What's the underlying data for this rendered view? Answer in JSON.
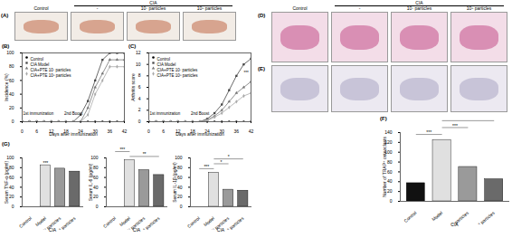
{
  "photo_panels": [
    {
      "title": "(A)",
      "group": "CIA",
      "labels": [
        "Control",
        "-",
        "10⁷ particles",
        "10⁸ particles"
      ]
    },
    {
      "title": "(D)",
      "group": "CIA",
      "labels": [
        "Control",
        "-",
        "10⁷ particles",
        "10⁸ particles"
      ]
    },
    {
      "title": "(E)"
    }
  ],
  "chart_data": [
    {
      "type": "line",
      "title": "(B)",
      "xlabel": "Days after immunization",
      "ylabel": "Incidence (%)",
      "x": [
        0,
        3,
        6,
        9,
        12,
        15,
        18,
        21,
        24,
        27,
        30,
        33,
        36,
        39,
        42
      ],
      "xlim": [
        0,
        42
      ],
      "xticks": [
        0,
        6,
        12,
        18,
        24,
        30,
        36,
        42
      ],
      "ylim": [
        0,
        100
      ],
      "yticks": [
        0,
        20,
        40,
        60,
        80,
        100
      ],
      "legend": "top-left",
      "annotations": [
        {
          "text": "1st immunization",
          "x": 0,
          "y": 12
        },
        {
          "text": "2nd Boost",
          "x": 21,
          "y": 12
        }
      ],
      "series": [
        {
          "name": "Control",
          "color": "#000000",
          "marker": "circle",
          "values": [
            0,
            0,
            0,
            0,
            0,
            0,
            0,
            0,
            0,
            0,
            0,
            0,
            0,
            0,
            0
          ]
        },
        {
          "name": "CIA Model",
          "color": "#444444",
          "marker": "square",
          "values": [
            0,
            0,
            0,
            0,
            0,
            0,
            0,
            0,
            10,
            30,
            60,
            90,
            100,
            100,
            100
          ]
        },
        {
          "name": "CIA+PTE 10⁷ particles",
          "color": "#777777",
          "marker": "triangle",
          "values": [
            0,
            0,
            0,
            0,
            0,
            0,
            0,
            0,
            0,
            20,
            50,
            70,
            90,
            90,
            90
          ]
        },
        {
          "name": "CIA+PTE 10⁸ particles",
          "color": "#aaaaaa",
          "marker": "diamond",
          "values": [
            0,
            0,
            0,
            0,
            0,
            0,
            0,
            0,
            0,
            10,
            40,
            60,
            80,
            80,
            80
          ]
        }
      ]
    },
    {
      "type": "line",
      "title": "(C)",
      "xlabel": "Days after immunization",
      "ylabel": "Arthritis score",
      "x": [
        0,
        3,
        6,
        9,
        12,
        15,
        18,
        21,
        24,
        27,
        30,
        33,
        36,
        39,
        42
      ],
      "xlim": [
        0,
        42
      ],
      "xticks": [
        0,
        6,
        12,
        18,
        24,
        30,
        36,
        42
      ],
      "ylim": [
        0,
        12
      ],
      "yticks": [
        0,
        2,
        4,
        6,
        8,
        10,
        12
      ],
      "legend": "top-left",
      "annotations": [
        {
          "text": "1st immunization",
          "x": 0,
          "y": 1.4
        },
        {
          "text": "2nd Boost",
          "x": 21,
          "y": 1.4
        },
        {
          "text": "***",
          "x": 40,
          "y": 8.5
        }
      ],
      "series": [
        {
          "name": "Control",
          "color": "#000000",
          "marker": "circle",
          "values": [
            0,
            0,
            0,
            0,
            0,
            0,
            0,
            0,
            0,
            0,
            0,
            0,
            0,
            0,
            0
          ]
        },
        {
          "name": "CIA Model",
          "color": "#444444",
          "marker": "square",
          "values": [
            0,
            0,
            0,
            0,
            0,
            0,
            0,
            0,
            0.5,
            1.5,
            3,
            5.5,
            8,
            10,
            11
          ]
        },
        {
          "name": "CIA+PTE 10⁷ particles",
          "color": "#777777",
          "marker": "triangle",
          "values": [
            0,
            0,
            0,
            0,
            0,
            0,
            0,
            0,
            0.3,
            1,
            2,
            3.5,
            5,
            6,
            7
          ]
        },
        {
          "name": "CIA+PTE 10⁸ particles",
          "color": "#aaaaaa",
          "marker": "diamond",
          "values": [
            0,
            0,
            0,
            0,
            0,
            0,
            0,
            0,
            0.2,
            0.8,
            1.5,
            2.5,
            3.5,
            4.5,
            5
          ]
        }
      ]
    },
    {
      "type": "bar",
      "title": "(F)",
      "ylabel": "Number of TRAP⁺ osteoclasts",
      "xlabel": "CIA",
      "categories": [
        "Control",
        "Model",
        "10⁷ particles",
        "10⁸ particles"
      ],
      "values": [
        37,
        125,
        70,
        45
      ],
      "colors": [
        "#111111",
        "#e0e0e0",
        "#9a9a9a",
        "#6a6a6a"
      ],
      "ylim": [
        0,
        140
      ],
      "yticks": [
        0,
        20,
        40,
        60,
        80,
        100,
        120,
        140
      ],
      "annotations": [
        {
          "text": "***",
          "between": [
            "Control",
            "Model"
          ]
        },
        {
          "text": "***",
          "between": [
            "Model",
            "10⁷ particles"
          ]
        },
        {
          "text": "***",
          "between": [
            "Model",
            "10⁸ particles"
          ]
        }
      ]
    },
    {
      "type": "bar",
      "title": "(G)",
      "ylabel": "Serum TNF-α (pg/ml)",
      "xlabel": "CIA",
      "categories": [
        "Control",
        "Model",
        "10⁷ particles",
        "10⁸ particles"
      ],
      "values": [
        0,
        85,
        78,
        72
      ],
      "colors": [
        "#111111",
        "#e0e0e0",
        "#9a9a9a",
        "#6a6a6a"
      ],
      "ylim": [
        0,
        100
      ],
      "yticks": [
        0,
        20,
        40,
        60,
        80,
        100
      ],
      "annotations": [
        {
          "text": "***",
          "at": "Model"
        }
      ]
    },
    {
      "type": "bar",
      "ylabel": "Serum IL-6 (pg/ml)",
      "xlabel": "CIA",
      "categories": [
        "Control",
        "Model",
        "10⁷ particles",
        "10⁸ particles"
      ],
      "values": [
        0,
        95,
        75,
        65
      ],
      "colors": [
        "#111111",
        "#e0e0e0",
        "#9a9a9a",
        "#6a6a6a"
      ],
      "ylim": [
        0,
        100
      ],
      "yticks": [
        0,
        20,
        40,
        60,
        80,
        100
      ],
      "annotations": [
        {
          "text": "**",
          "between": [
            "Model",
            "10⁸ particles"
          ]
        },
        {
          "text": "***",
          "between": [
            "Control",
            "Model"
          ]
        }
      ]
    },
    {
      "type": "bar",
      "ylabel": "Serum IL-1β (pg/ml)",
      "xlabel": "CIA",
      "categories": [
        "Control",
        "Model",
        "10⁷ particles",
        "10⁸ particles"
      ],
      "values": [
        0,
        70,
        35,
        33
      ],
      "colors": [
        "#111111",
        "#e0e0e0",
        "#9a9a9a",
        "#6a6a6a"
      ],
      "ylim": [
        0,
        100
      ],
      "yticks": [
        0,
        20,
        40,
        60,
        80,
        100
      ],
      "annotations": [
        {
          "text": "***",
          "between": [
            "Control",
            "Model"
          ]
        },
        {
          "text": "*",
          "between": [
            "Model",
            "10⁷ particles"
          ]
        },
        {
          "text": "*",
          "between": [
            "Model",
            "10⁸ particles"
          ]
        }
      ]
    }
  ]
}
